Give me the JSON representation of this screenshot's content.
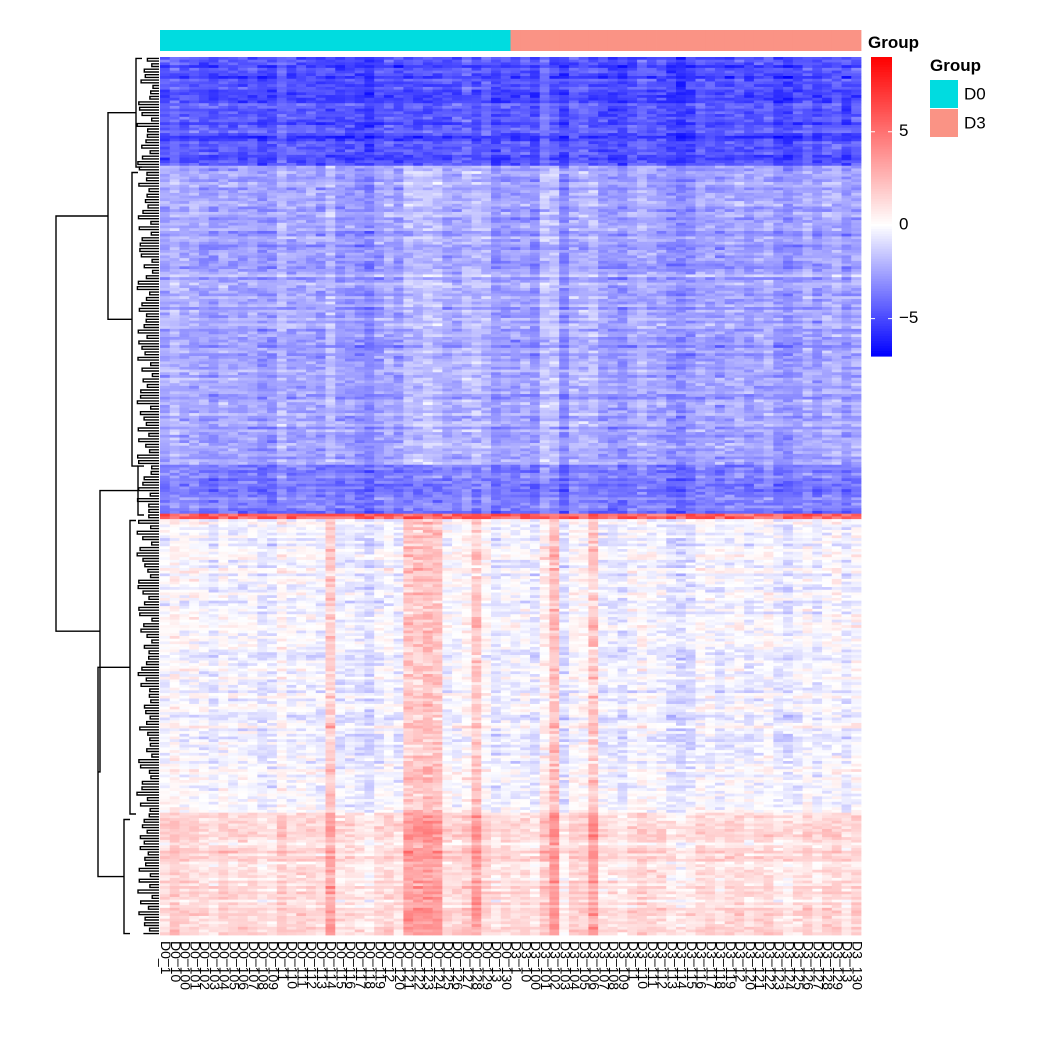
{
  "chart_data": {
    "type": "heatmap",
    "title": "",
    "xlabel": "",
    "ylabel": "",
    "columns": [
      "D0_1",
      "D0_10",
      "D0_100",
      "D0_101",
      "D0_102",
      "D0_103",
      "D0_104",
      "D0_105",
      "D0_106",
      "D0_107",
      "D0_108",
      "D0_109",
      "D0_11",
      "D0_110",
      "D0_111",
      "D0_112",
      "D0_113",
      "D0_114",
      "D0_115",
      "D0_116",
      "D0_117",
      "D0_118",
      "D0_119",
      "D0_12",
      "D0_120",
      "D0_121",
      "D0_122",
      "D0_123",
      "D0_124",
      "D0_125",
      "D0_126",
      "D0_127",
      "D0_128",
      "D0_129",
      "D0_13",
      "D0_130",
      "D3_1",
      "D3_10",
      "D3_100",
      "D3_101",
      "D3_102",
      "D3_103",
      "D3_104",
      "D3_105",
      "D3_106",
      "D3_107",
      "D3_108",
      "D3_109",
      "D3_11",
      "D3_110",
      "D3_111",
      "D3_112",
      "D3_113",
      "D3_114",
      "D3_115",
      "D3_116",
      "D3_117",
      "D3_118",
      "D3_119",
      "D3_12",
      "D3_120",
      "D3_121",
      "D3_122",
      "D3_123",
      "D3_124",
      "D3_125",
      "D3_126",
      "D3_127",
      "D3_128",
      "D3_129",
      "D3_13",
      "D3_130"
    ],
    "column_groups": [
      "D0",
      "D0",
      "D0",
      "D0",
      "D0",
      "D0",
      "D0",
      "D0",
      "D0",
      "D0",
      "D0",
      "D0",
      "D0",
      "D0",
      "D0",
      "D0",
      "D0",
      "D0",
      "D0",
      "D0",
      "D0",
      "D0",
      "D0",
      "D0",
      "D0",
      "D0",
      "D0",
      "D0",
      "D0",
      "D0",
      "D0",
      "D0",
      "D0",
      "D0",
      "D0",
      "D0",
      "D3",
      "D3",
      "D3",
      "D3",
      "D3",
      "D3",
      "D3",
      "D3",
      "D3",
      "D3",
      "D3",
      "D3",
      "D3",
      "D3",
      "D3",
      "D3",
      "D3",
      "D3",
      "D3",
      "D3",
      "D3",
      "D3",
      "D3",
      "D3",
      "D3",
      "D3",
      "D3",
      "D3",
      "D3",
      "D3",
      "D3",
      "D3",
      "D3",
      "D3",
      "D3",
      "D3"
    ],
    "annotation": {
      "title": "Group",
      "legend_title": "Group",
      "levels": [
        {
          "name": "D0",
          "color": "#00DCE0"
        },
        {
          "name": "D3",
          "color": "#FA9385"
        }
      ]
    },
    "color_scale": {
      "title": "Group",
      "min": -7,
      "max": 9,
      "ticks": [
        -5,
        0,
        5
      ],
      "tick_labels": [
        "−5",
        "0",
        "5"
      ],
      "low_color": "#0000FF",
      "mid_color": "#FFFFFF",
      "high_color": "#FF0000"
    },
    "row_blocks": [
      {
        "rows": 40,
        "level": -4.8
      },
      {
        "rows": 110,
        "level": -2.5
      },
      {
        "rows": 18,
        "level": -3.6
      },
      {
        "rows": 110,
        "level": -0.3
      },
      {
        "rows": 45,
        "level": 1.2
      }
    ],
    "hot_columns": [
      "D0_114",
      "D0_121",
      "D0_122",
      "D0_123",
      "D0_124",
      "D0_128",
      "D3_102",
      "D3_106"
    ],
    "dendrogram": "row clustering, 2 main clusters"
  }
}
